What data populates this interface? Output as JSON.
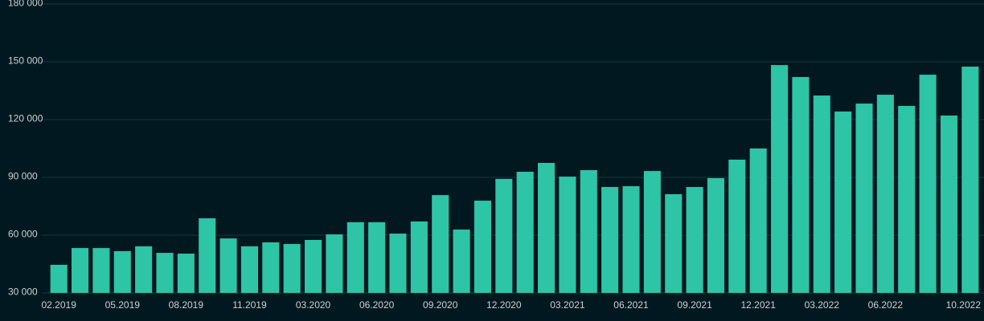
{
  "chart_data": {
    "type": "bar",
    "categories": [
      "02.2019",
      null,
      null,
      "05.2019",
      null,
      null,
      "08.2019",
      null,
      null,
      "11.2019",
      null,
      null,
      "03.2020",
      null,
      null,
      "06.2020",
      null,
      null,
      "09.2020",
      null,
      null,
      "12.2020",
      null,
      null,
      "03.2021",
      null,
      null,
      "06.2021",
      null,
      null,
      "09.2021",
      null,
      null,
      "12.2021",
      null,
      null,
      "03.2022",
      null,
      null,
      "06.2022",
      null,
      null,
      null,
      "10.2022"
    ],
    "values": [
      44600,
      53300,
      53300,
      51700,
      54200,
      50800,
      50400,
      68750,
      58300,
      54200,
      56250,
      55400,
      57500,
      60400,
      66700,
      66700,
      60800,
      67100,
      80800,
      62900,
      77900,
      89200,
      92900,
      97500,
      90400,
      93750,
      85000,
      85400,
      93300,
      81250,
      85000,
      89600,
      99200,
      105000,
      148300,
      142100,
      132500,
      124200,
      128300,
      132900,
      127100,
      143300,
      122100,
      147500
    ],
    "color": "#2ec4a6",
    "ylim": [
      30000,
      180000
    ],
    "yticks": [
      {
        "value": 30000,
        "label": "30 000"
      },
      {
        "value": 60000,
        "label": "60 000"
      },
      {
        "value": 90000,
        "label": "90 000"
      },
      {
        "value": 120000,
        "label": "120 000"
      },
      {
        "value": 150000,
        "label": "150 000"
      },
      {
        "value": 180000,
        "label": "180 000"
      }
    ],
    "grid": true
  }
}
